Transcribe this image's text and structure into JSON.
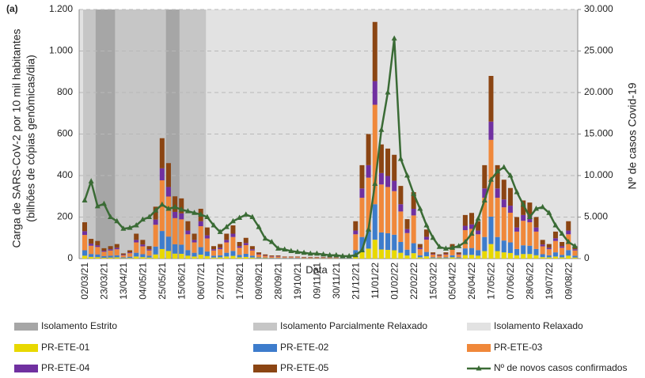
{
  "chart_data": {
    "type": "bar",
    "annotation": "(a)",
    "xlabel": "Data",
    "ylabel": [
      "Carga de SARS-CoV-2 por 10 mil habitantes",
      "(bilhões de cópias genômicas/dia)"
    ],
    "y2label": "Nº de casos Covid-19",
    "stacked": true,
    "categories": [
      "02/03/21",
      null,
      null,
      "23/03/21",
      null,
      null,
      "13/04/21",
      null,
      null,
      "04/05/21",
      null,
      null,
      "25/05/21",
      null,
      null,
      "15/06/21",
      null,
      null,
      "06/07/21",
      null,
      null,
      "27/07/21",
      null,
      null,
      "17/08/21",
      null,
      null,
      "09/09/21",
      null,
      null,
      "28/09/21",
      null,
      null,
      "19/10/21",
      null,
      null,
      "09/11/21",
      null,
      null,
      "30/11/21",
      null,
      null,
      "21/12/21",
      null,
      null,
      "11/01/22",
      null,
      null,
      "01/02/22",
      null,
      null,
      "22/02/22",
      null,
      null,
      "15/03/22",
      null,
      null,
      "05/04/22",
      null,
      null,
      "26/04/22",
      null,
      null,
      "17/05/22",
      null,
      null,
      "07/06/22",
      null,
      null,
      "28/06/22",
      null,
      null,
      "19/07/22",
      null,
      null,
      "09/08/22",
      null
    ],
    "regions": [
      {
        "name": "Isolamento Estrito",
        "color": "#a6a6a6"
      },
      {
        "name": "Isolamento Parcialmente Relaxado",
        "color": "#c6c6c6"
      },
      {
        "name": "Isolamento Relaxado",
        "color": "#e2e2e2"
      }
    ],
    "series": [
      {
        "name": "PR-ETE-01",
        "color": "#e8d800",
        "values": [
          14,
          8,
          7,
          4,
          5,
          6,
          2,
          3,
          10,
          7,
          5,
          20,
          46,
          37,
          24,
          23,
          14,
          10,
          19,
          12,
          5,
          6,
          10,
          13,
          6,
          8,
          5,
          2,
          2,
          1,
          1,
          1,
          1,
          1,
          1,
          1,
          1,
          1,
          1,
          1,
          1,
          1,
          14,
          36,
          48,
          91,
          44,
          42,
          40,
          28,
          15,
          26,
          6,
          11,
          2,
          2,
          2,
          6,
          2,
          17,
          18,
          14,
          36,
          70,
          36,
          30,
          27,
          16,
          22,
          22,
          16,
          7,
          6,
          10,
          6,
          14,
          5
        ]
      },
      {
        "name": "PR-ETE-02",
        "color": "#3d7ccc",
        "values": [
          26,
          14,
          13,
          8,
          9,
          10,
          4,
          6,
          18,
          14,
          9,
          38,
          87,
          69,
          45,
          44,
          27,
          18,
          36,
          22,
          9,
          10,
          18,
          24,
          12,
          15,
          9,
          4,
          3,
          2,
          2,
          2,
          2,
          2,
          1,
          1,
          1,
          1,
          1,
          1,
          2,
          2,
          27,
          68,
          90,
          171,
          82,
          80,
          75,
          52,
          28,
          48,
          10,
          21,
          4,
          3,
          4,
          10,
          4,
          32,
          33,
          27,
          68,
          132,
          68,
          57,
          51,
          30,
          42,
          40,
          30,
          14,
          10,
          20,
          12,
          27,
          9
        ]
      },
      {
        "name": "PR-ETE-03",
        "color": "#f0883a",
        "values": [
          74,
          40,
          36,
          21,
          25,
          29,
          10,
          17,
          50,
          38,
          25,
          105,
          244,
          193,
          126,
          122,
          76,
          50,
          101,
          63,
          25,
          29,
          50,
          67,
          34,
          42,
          25,
          13,
          8,
          6,
          6,
          4,
          4,
          4,
          3,
          3,
          3,
          3,
          3,
          3,
          4,
          6,
          76,
          189,
          252,
          479,
          231,
          223,
          210,
          147,
          80,
          134,
          29,
          59,
          13,
          8,
          13,
          29,
          13,
          88,
          92,
          76,
          189,
          370,
          189,
          160,
          143,
          84,
          118,
          113,
          84,
          38,
          29,
          55,
          34,
          76,
          25
        ]
      },
      {
        "name": "PR-ETE-04",
        "color": "#7030a0",
        "values": [
          18,
          10,
          8,
          5,
          6,
          7,
          3,
          4,
          12,
          9,
          6,
          25,
          58,
          46,
          30,
          29,
          18,
          12,
          24,
          15,
          6,
          7,
          12,
          16,
          8,
          10,
          6,
          3,
          2,
          2,
          2,
          1,
          1,
          1,
          1,
          1,
          1,
          1,
          1,
          1,
          1,
          2,
          18,
          45,
          60,
          114,
          55,
          53,
          50,
          35,
          19,
          32,
          7,
          14,
          3,
          2,
          3,
          7,
          3,
          21,
          22,
          18,
          45,
          88,
          45,
          38,
          34,
          20,
          28,
          27,
          20,
          9,
          7,
          13,
          8,
          18,
          6
        ]
      },
      {
        "name": "PR-ETE-05",
        "color": "#8b4513",
        "values": [
          43,
          23,
          21,
          12,
          15,
          18,
          6,
          10,
          30,
          22,
          15,
          62,
          145,
          115,
          75,
          72,
          45,
          30,
          60,
          38,
          15,
          18,
          30,
          40,
          20,
          25,
          15,
          8,
          5,
          4,
          4,
          2,
          2,
          2,
          2,
          2,
          2,
          2,
          2,
          2,
          2,
          4,
          45,
          112,
          150,
          285,
          138,
          132,
          125,
          88,
          48,
          80,
          18,
          35,
          8,
          5,
          8,
          18,
          8,
          52,
          55,
          45,
          112,
          220,
          112,
          95,
          85,
          50,
          70,
          68,
          50,
          22,
          18,
          32,
          20,
          45,
          15
        ]
      },
      {
        "name": "Nº de novos casos confirmados",
        "color": "#3a6b35",
        "type": "line",
        "axis": "y2",
        "values": [
          7000,
          9300,
          6300,
          6600,
          5000,
          4500,
          3600,
          3700,
          4000,
          4700,
          5000,
          5800,
          6500,
          6000,
          6200,
          5900,
          5700,
          5500,
          5300,
          5000,
          4000,
          3200,
          3800,
          4500,
          4900,
          5300,
          5000,
          3800,
          2400,
          2000,
          1200,
          1100,
          900,
          800,
          700,
          600,
          600,
          500,
          400,
          400,
          300,
          300,
          400,
          1000,
          3500,
          9000,
          15500,
          20000,
          26500,
          12000,
          10000,
          7800,
          6000,
          4000,
          2500,
          1400,
          1200,
          1300,
          1500,
          2000,
          3000,
          4800,
          7000,
          9500,
          10500,
          11000,
          10000,
          8000,
          6500,
          5000,
          6000,
          6200,
          5500,
          4000,
          3000,
          2000,
          1500
        ]
      }
    ],
    "ylim": [
      0,
      1200
    ],
    "yticks": [
      0,
      200,
      400,
      600,
      800,
      {
        "value": 1000,
        "label": "1.000"
      },
      {
        "value": 1200,
        "label": "1.200"
      }
    ],
    "y2lim": [
      0,
      30000
    ],
    "y2ticks": [
      0,
      {
        "value": 5000,
        "label": "5.000"
      },
      {
        "value": 10000,
        "label": "10.000"
      },
      {
        "value": 15000,
        "label": "15.000"
      },
      {
        "value": 20000,
        "label": "20.000"
      },
      {
        "value": 25000,
        "label": "25.000"
      },
      {
        "value": 30000,
        "label": "30.000"
      }
    ],
    "grid": true
  }
}
